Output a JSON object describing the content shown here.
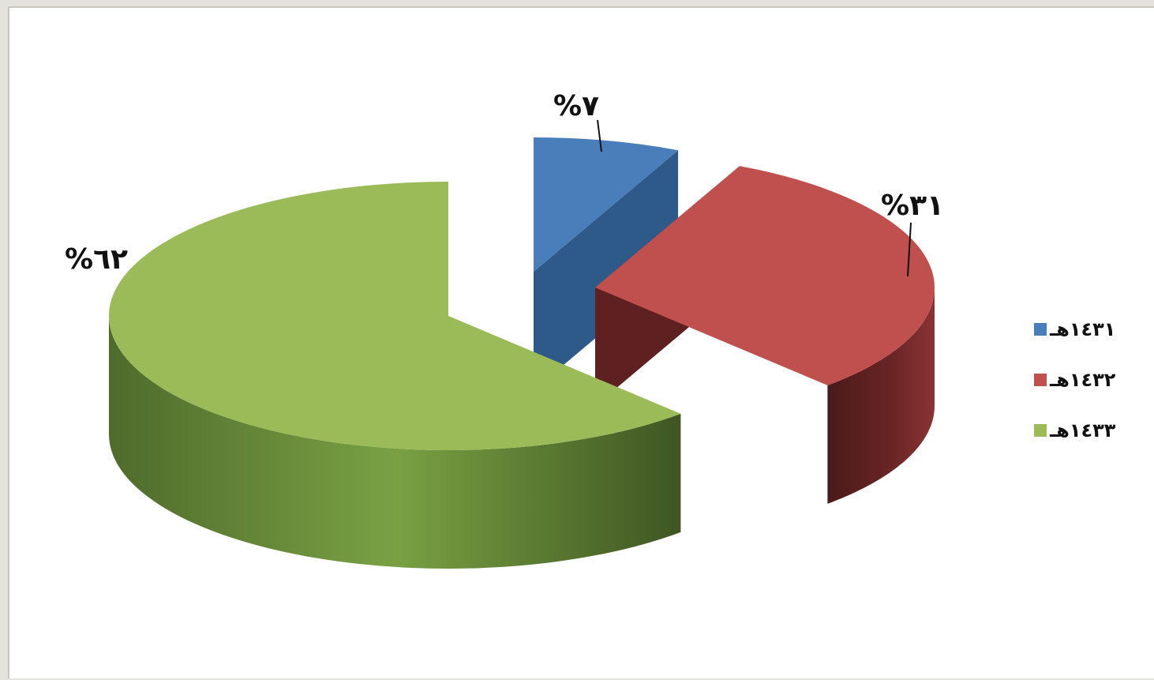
{
  "chart_data": {
    "type": "pie",
    "style": "3d-exploded",
    "categories": [
      "١٤٣١هـ",
      "١٤٣٢هـ",
      "١٤٣٣هـ"
    ],
    "values": [
      7,
      31,
      62
    ],
    "value_labels": [
      "%٧",
      "%٣١",
      "%٦٢"
    ],
    "colors": [
      "#4a7ebb",
      "#c0504d",
      "#9bbb59"
    ],
    "side_colors": [
      "#2e5a8a",
      "#5e2020",
      "#5b7a33"
    ],
    "legend_position": "right"
  }
}
